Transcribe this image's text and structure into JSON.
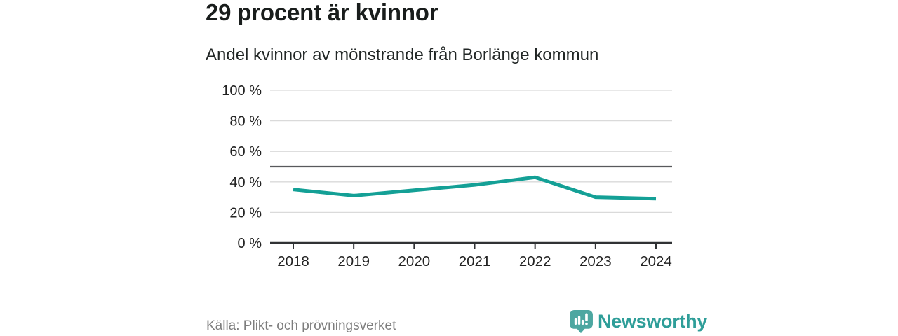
{
  "header": {
    "title": "29 procent är kvinnor",
    "subtitle": "Andel kvinnor av mönstrande från Borlänge kommun"
  },
  "chart_data": {
    "type": "line",
    "x": [
      "2018",
      "2019",
      "2020",
      "2021",
      "2022",
      "2023",
      "2024"
    ],
    "series": [
      {
        "name": "Andel kvinnor av mönstrande",
        "values": [
          35,
          31,
          34.5,
          38,
          43,
          30,
          29
        ]
      }
    ],
    "unit": "%",
    "ylim": [
      0,
      100
    ],
    "yticks": [
      0,
      20,
      40,
      60,
      80,
      100
    ],
    "ytick_suffix": " %",
    "reference_line": 50,
    "grid": true,
    "legend": "none",
    "title": "29 procent är kvinnor",
    "xlabel": "",
    "ylabel": ""
  },
  "footer": {
    "source": "Källa: Plikt- och prövningsverket",
    "brand": "Newsworthy"
  },
  "colors": {
    "line_teal": "#14a096",
    "logo_bubble_teal": "#4da7a1",
    "brand_text_teal": "#2f9e99",
    "gridline": "#dadada",
    "reference_line": "#58595c",
    "axis": "#303234",
    "tick_text": "#222222",
    "muted_text": "#7d7d7d"
  },
  "icons": {
    "brand_icon": "newsworthy-bar-chart-speech-bubble"
  }
}
